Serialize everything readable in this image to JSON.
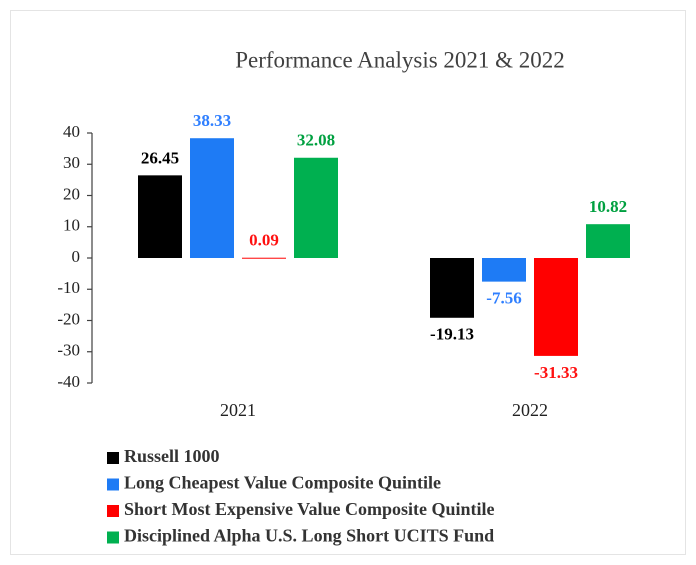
{
  "chart_data": {
    "type": "bar",
    "title": "Performance Analysis 2021 & 2022",
    "categories": [
      "2021",
      "2022"
    ],
    "series": [
      {
        "name": "Russell 1000",
        "color": "#000000",
        "label_color": "#000000",
        "values": [
          26.45,
          -19.13
        ]
      },
      {
        "name": "Long Cheapest Value Composite Quintile",
        "color": "#1e7bf5",
        "label_color": "#2f7fff",
        "values": [
          38.33,
          -7.56
        ]
      },
      {
        "name": "Short Most Expensive Value Composite Quintile",
        "color": "#ff0000",
        "label_color": "#ff1010",
        "values": [
          0.09,
          -31.33
        ]
      },
      {
        "name": "Disciplined Alpha U.S. Long Short UCITS Fund",
        "color": "#00b050",
        "label_color": "#00a040",
        "values": [
          32.08,
          10.82
        ]
      }
    ],
    "ylim": [
      -40,
      40
    ],
    "yticks": [
      -40,
      -30,
      -20,
      -10,
      0,
      10,
      20,
      30,
      40
    ],
    "grid": false,
    "legend": "bottom-left"
  }
}
